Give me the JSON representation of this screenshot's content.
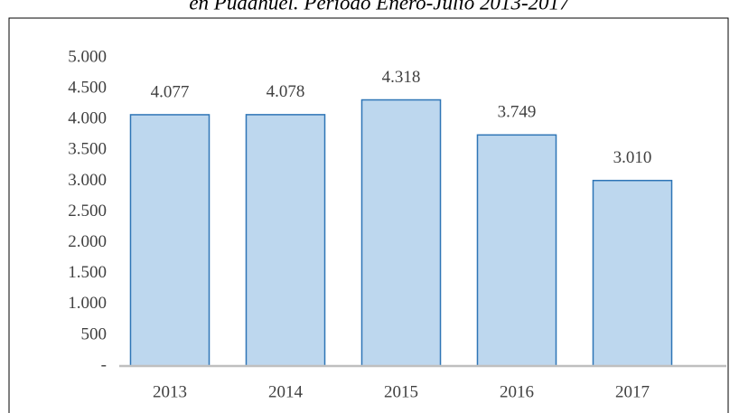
{
  "chart_data": {
    "type": "bar",
    "title": "en Pudahuel. Período Enero-Julio 2013-2017",
    "categories": [
      "2013",
      "2014",
      "2015",
      "2016",
      "2017"
    ],
    "values": [
      4077,
      4078,
      4318,
      3749,
      3010
    ],
    "value_labels": [
      "4.077",
      "4.078",
      "4.318",
      "3.749",
      "3.010"
    ],
    "color": "#bdd7ee",
    "ylim": [
      0,
      5000
    ],
    "yticks": [
      {
        "value": 0,
        "label": "-"
      },
      500,
      {
        "value": 1000,
        "label": "1.000"
      },
      {
        "value": 1500,
        "label": "1.500"
      },
      {
        "value": 2000,
        "label": "2.000"
      },
      {
        "value": 2500,
        "label": "2.500"
      },
      {
        "value": 3000,
        "label": "3.000"
      },
      {
        "value": 3500,
        "label": "3.500"
      },
      {
        "value": 4000,
        "label": "4.000"
      },
      {
        "value": 4500,
        "label": "4.500"
      },
      {
        "value": 5000,
        "label": "5.000"
      }
    ]
  }
}
